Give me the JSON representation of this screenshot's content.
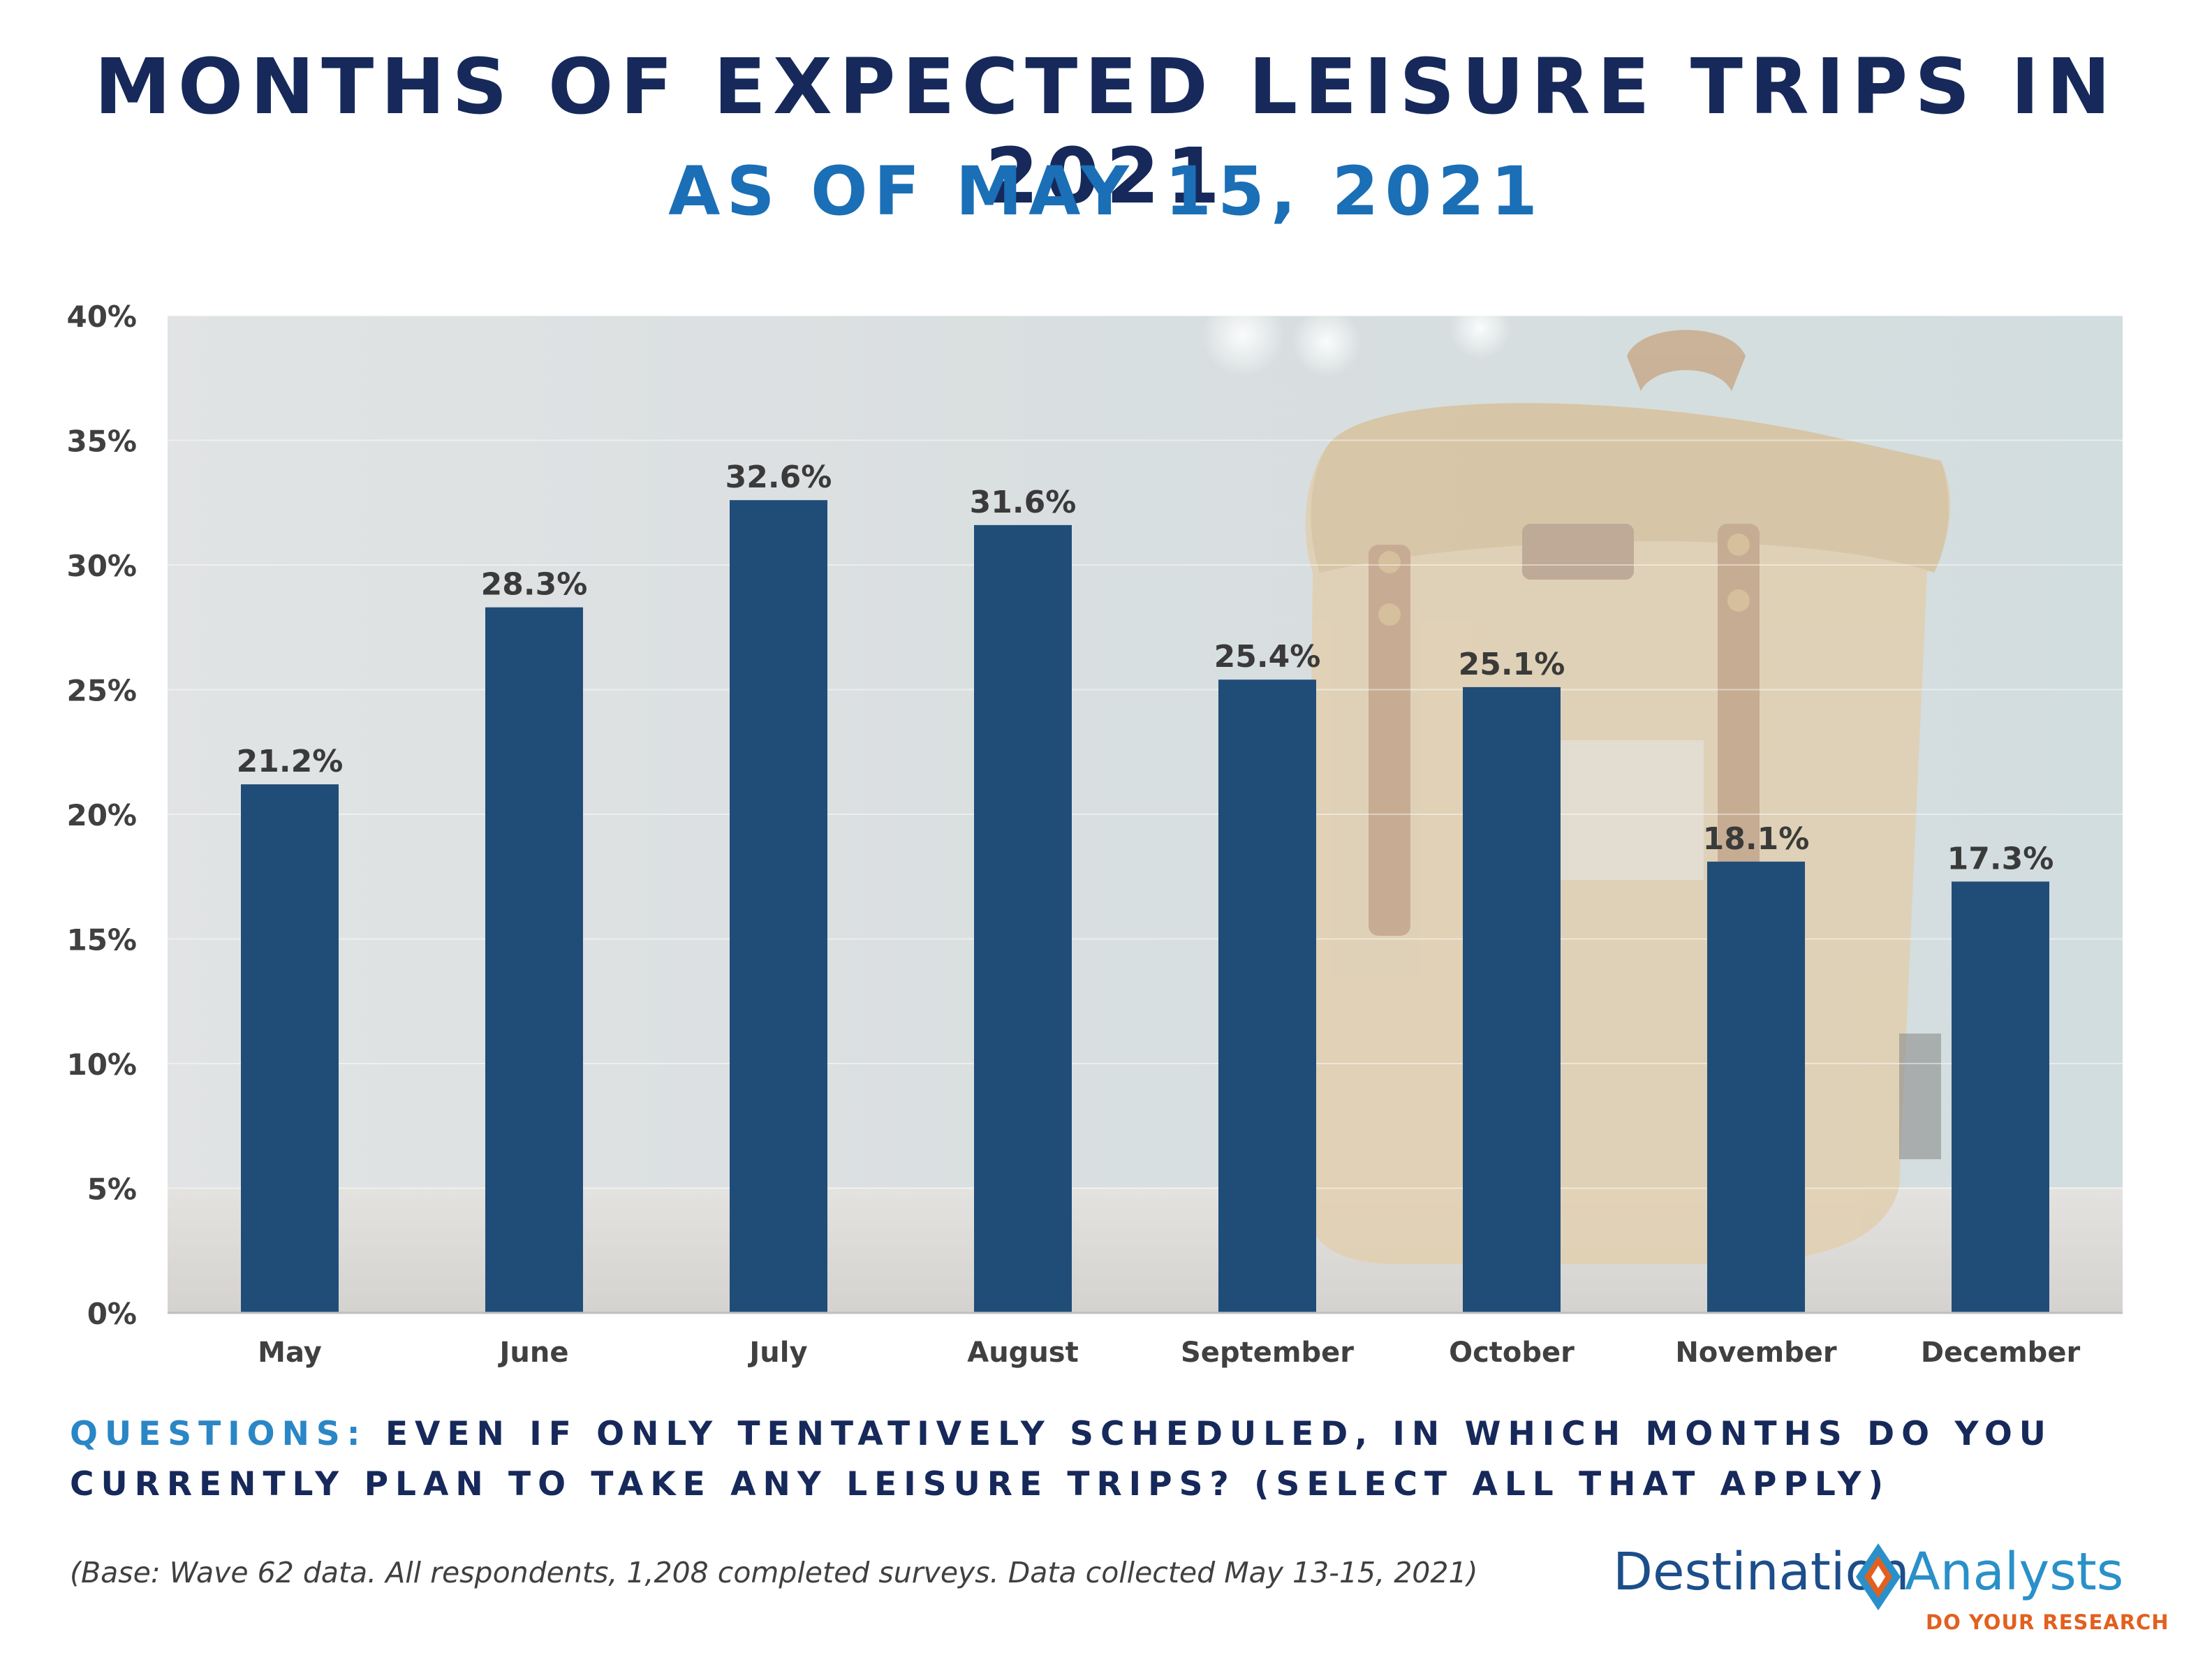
{
  "title": "MONTHS OF EXPECTED LEISURE TRIPS IN 2021",
  "subtitle": "AS OF MAY 15, 2021",
  "question": {
    "label": "QUESTIONS:",
    "text": "EVEN IF ONLY TENTATIVELY SCHEDULED, IN WHICH MONTHS DO YOU CURRENTLY PLAN TO TAKE ANY LEISURE TRIPS? (SELECT ALL THAT APPLY)"
  },
  "base_note": "(Base: Wave 62 data. All respondents, 1,208 completed surveys. Data collected May 13-15, 2021)",
  "logo": {
    "left_word": "Destination",
    "right_word": "Analysts",
    "tagline": "DO YOUR RESEARCH",
    "colors": {
      "blue": "#1c4e8a",
      "light_blue": "#2a90c9",
      "orange": "#e2601f"
    }
  },
  "colors": {
    "bar": "#204d78",
    "title": "#16295a",
    "subtitle": "#1a6fb6",
    "question_label": "#2b86c5"
  },
  "chart_data": {
    "type": "bar",
    "categories": [
      "May",
      "June",
      "July",
      "August",
      "September",
      "October",
      "November",
      "December"
    ],
    "values": [
      21.2,
      28.3,
      32.6,
      31.6,
      25.4,
      25.1,
      18.1,
      17.3
    ],
    "value_labels": [
      "21.2%",
      "28.3%",
      "32.6%",
      "31.6%",
      "25.4%",
      "25.1%",
      "18.1%",
      "17.3%"
    ],
    "ylim": [
      0,
      40
    ],
    "y_ticks": [
      0,
      5,
      10,
      15,
      20,
      25,
      30,
      35,
      40
    ],
    "y_tick_labels": [
      "0%",
      "5%",
      "10%",
      "15%",
      "20%",
      "25%",
      "30%",
      "35%",
      "40%"
    ],
    "xlabel": "",
    "ylabel": "",
    "grid": true,
    "legend": "none",
    "background_image": "backpack photo"
  }
}
